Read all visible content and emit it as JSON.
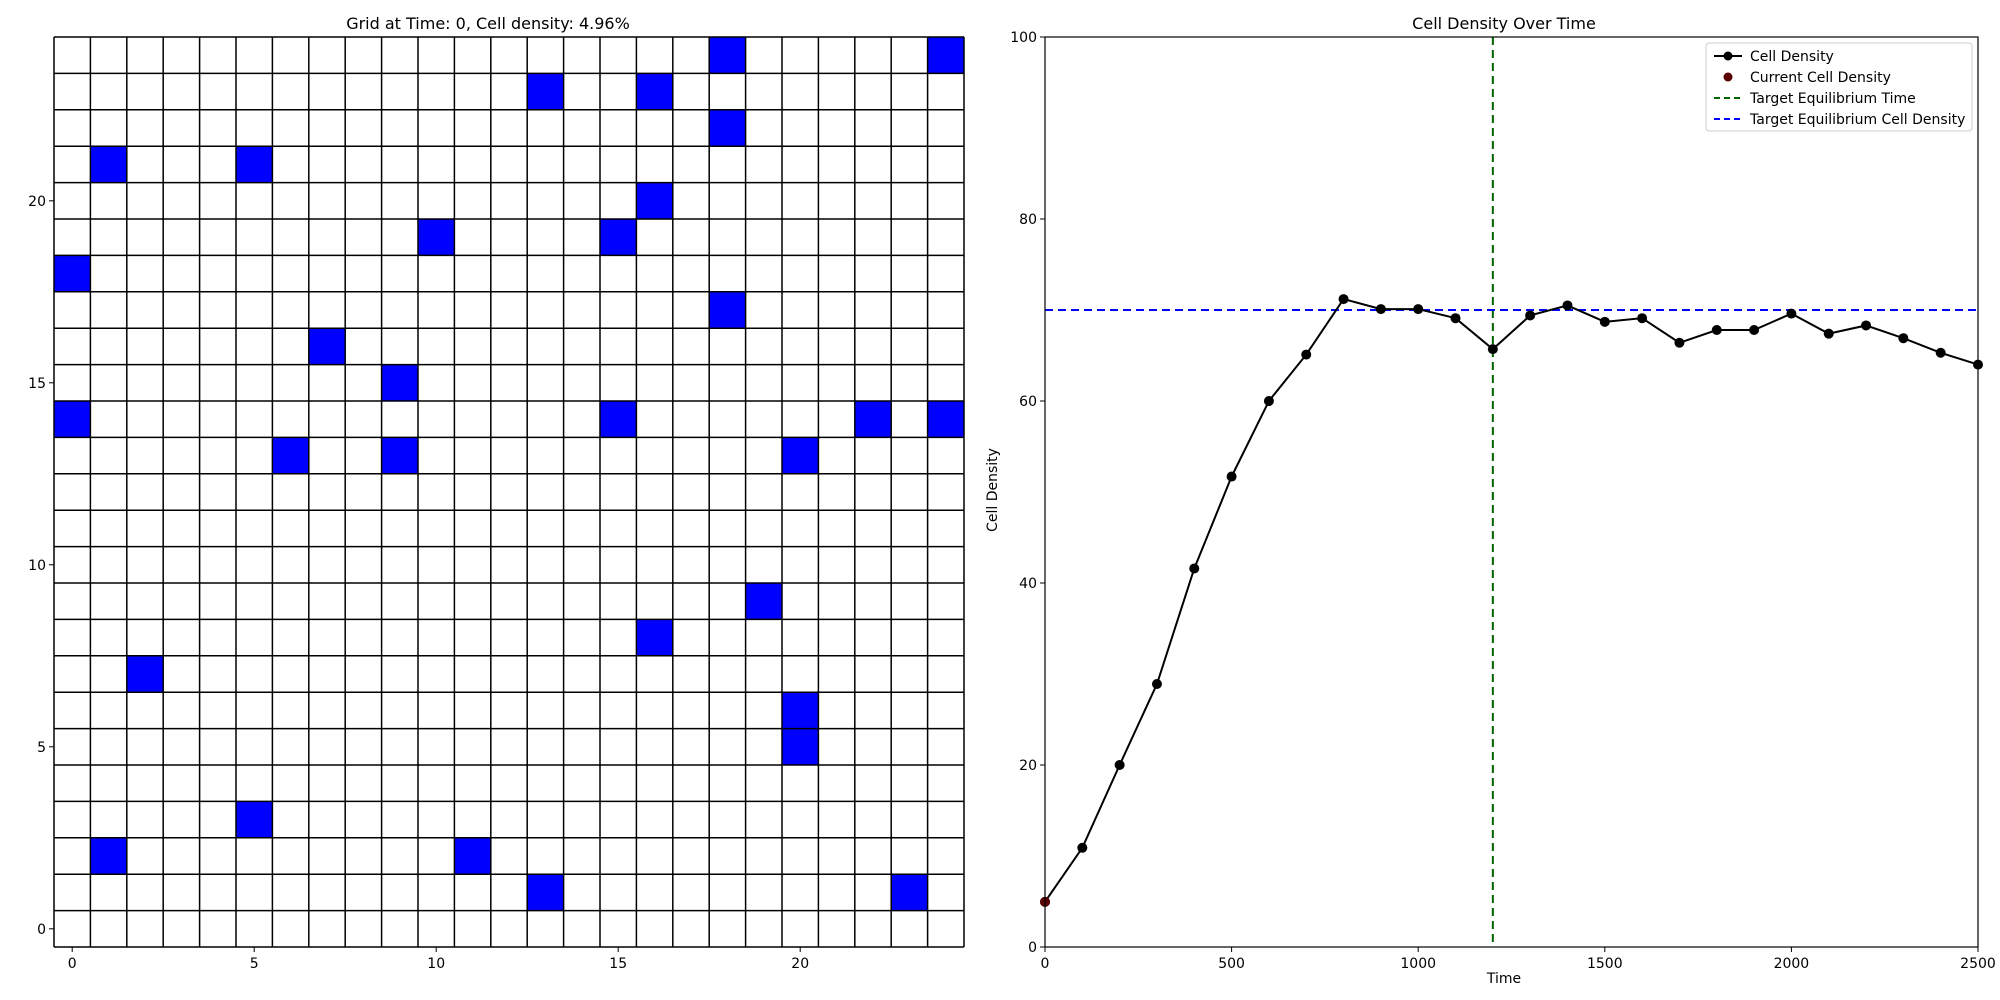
{
  "chart_data": [
    {
      "type": "heatmap",
      "title": "Grid at Time: 0, Cell density: 4.96%",
      "xlabel": "",
      "ylabel": "",
      "grid_size": [
        25,
        25
      ],
      "xlim": [
        -0.5,
        24.5
      ],
      "ylim": [
        -0.5,
        24.5
      ],
      "xticks": [
        0,
        5,
        10,
        15,
        20
      ],
      "yticks": [
        0,
        5,
        10,
        15,
        20
      ],
      "cell_color": "#0000ff",
      "empty_color": "#ffffff",
      "gridline_color": "#000000",
      "occupied_cells": [
        [
          18,
          24
        ],
        [
          24,
          24
        ],
        [
          13,
          23
        ],
        [
          16,
          23
        ],
        [
          18,
          22
        ],
        [
          1,
          21
        ],
        [
          5,
          21
        ],
        [
          16,
          20
        ],
        [
          10,
          19
        ],
        [
          15,
          19
        ],
        [
          0,
          18
        ],
        [
          18,
          17
        ],
        [
          7,
          16
        ],
        [
          9,
          15
        ],
        [
          0,
          14
        ],
        [
          15,
          14
        ],
        [
          22,
          14
        ],
        [
          24,
          14
        ],
        [
          6,
          13
        ],
        [
          9,
          13
        ],
        [
          20,
          13
        ],
        [
          19,
          9
        ],
        [
          16,
          8
        ],
        [
          2,
          7
        ],
        [
          20,
          6
        ],
        [
          20,
          5
        ],
        [
          5,
          3
        ],
        [
          1,
          2
        ],
        [
          11,
          2
        ],
        [
          13,
          1
        ],
        [
          23,
          1
        ]
      ]
    },
    {
      "type": "line",
      "title": "Cell Density Over Time",
      "xlabel": "Time",
      "ylabel": "Cell Density",
      "xlim": [
        0,
        2500
      ],
      "ylim": [
        0,
        100
      ],
      "xticks": [
        0,
        500,
        1000,
        1500,
        2000,
        2500
      ],
      "yticks": [
        0,
        20,
        40,
        60,
        80,
        100
      ],
      "grid": false,
      "legend_position": "top-right",
      "series": [
        {
          "name": "Cell Density",
          "color": "#000000",
          "x": [
            0,
            100,
            200,
            300,
            400,
            500,
            600,
            700,
            800,
            900,
            1000,
            1100,
            1200,
            1300,
            1400,
            1500,
            1600,
            1700,
            1800,
            1900,
            2000,
            2100,
            2200,
            2300,
            2400,
            2500
          ],
          "y": [
            4.96,
            10.9,
            20.0,
            28.9,
            41.6,
            51.7,
            60.0,
            65.1,
            71.2,
            70.1,
            70.1,
            69.1,
            65.7,
            69.4,
            70.5,
            68.7,
            69.1,
            66.4,
            67.8,
            67.8,
            69.6,
            67.4,
            68.3,
            66.9,
            65.3,
            64.0
          ]
        }
      ],
      "current_point": {
        "name": "Current Cell Density",
        "x": 0,
        "y": 4.96,
        "color": "#5a0000"
      },
      "target_time": {
        "name": "Target Equilibrium Time",
        "x": 1200,
        "color": "#006400"
      },
      "target_density": {
        "name": "Target Equilibrium Cell Density",
        "y": 70,
        "color": "#0000ff"
      }
    }
  ]
}
